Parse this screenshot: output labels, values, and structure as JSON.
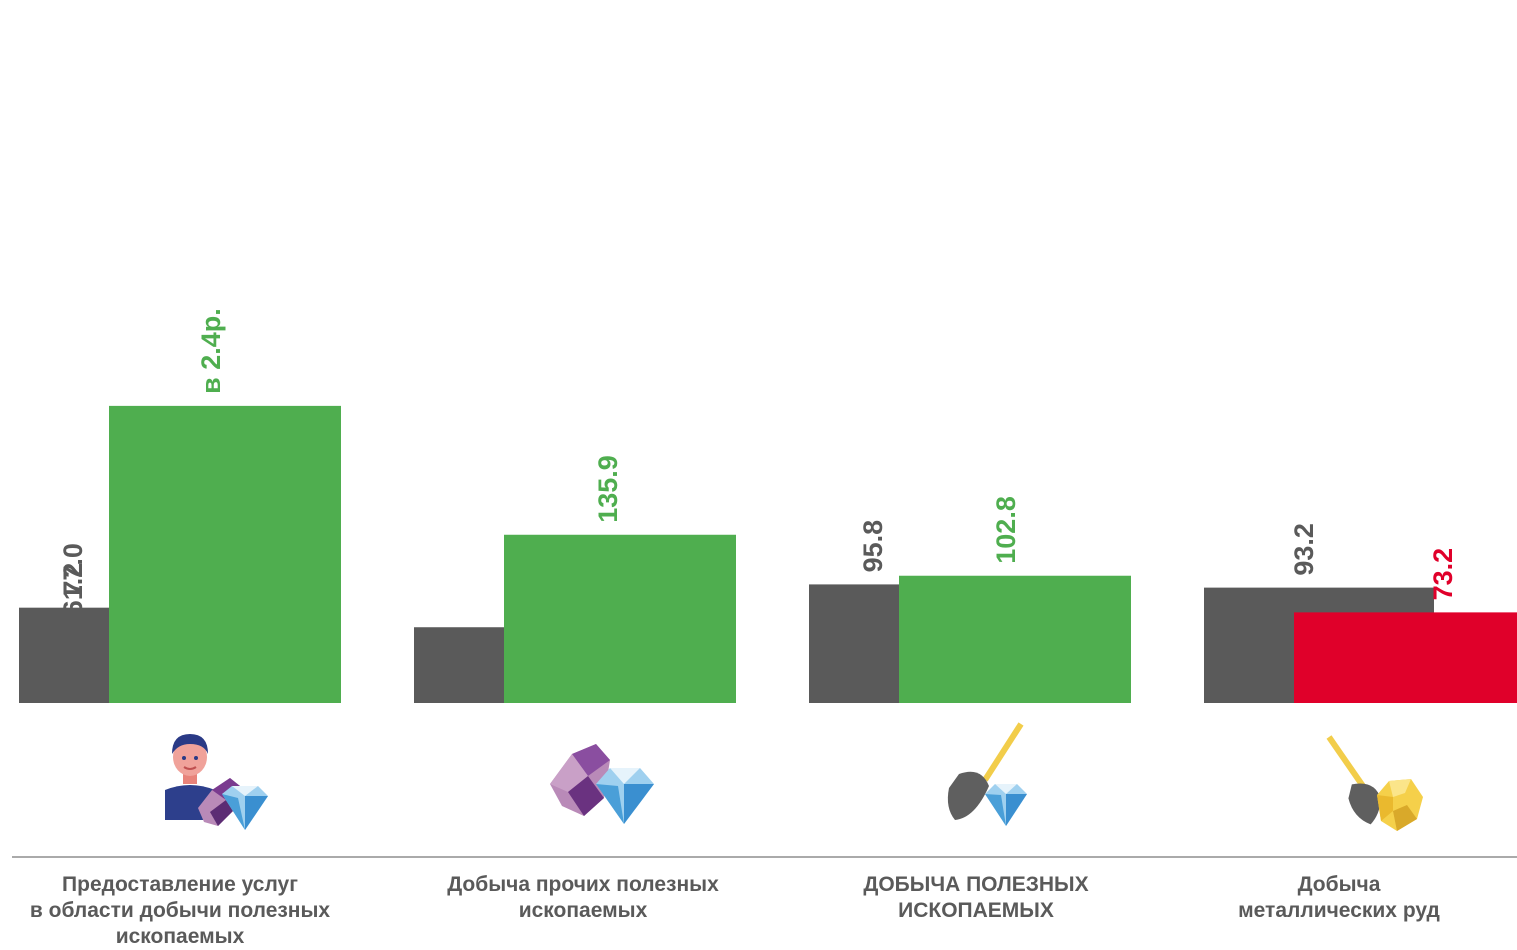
{
  "chart_data": {
    "type": "bar",
    "categories": [
      [
        "Предоставление услуг",
        "в области добычи полезных",
        "ископаемых"
      ],
      [
        "Добыча прочих полезных",
        "ископаемых"
      ],
      [
        "ДОБЫЧА ПОЛЕЗНЫХ",
        "ИСКОПАЕМЫХ"
      ],
      [
        "Добыча",
        "металлических руд"
      ]
    ],
    "series": [
      {
        "values": [
          77.0,
          61.2,
          95.8,
          93.2
        ],
        "labels": [
          "77.0",
          "61.2",
          "95.8",
          "93.2"
        ],
        "color": "#5a5a5a"
      },
      {
        "values": [
          240.0,
          135.9,
          102.8,
          73.2
        ],
        "labels": [
          "в 2.4р.",
          "135.9",
          "102.8",
          "73.2"
        ],
        "colors": [
          "#4fae4f",
          "#4fae4f",
          "#4fae4f",
          "#e0002a"
        ]
      }
    ],
    "icons": [
      "worker-with-gems-icon",
      "gems-icon",
      "shovel-with-diamond-icon",
      "shovel-with-gold-ore-icon"
    ],
    "colors": {
      "base": "#5a5a5a",
      "growth": "#4fae4f",
      "decline": "#e0002a",
      "category_text": "#5a5a5a",
      "divider": "#555555"
    },
    "grid": false,
    "legend": "none"
  }
}
